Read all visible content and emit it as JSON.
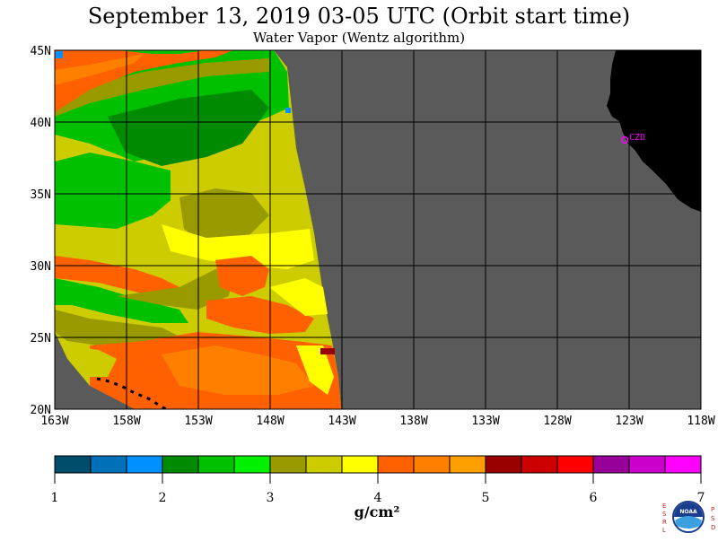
{
  "title": "September 13, 2019  03-05 UTC  (Orbit start time)",
  "subtitle": "Water Vapor (Wentz algorithm)",
  "map": {
    "lat_labels": [
      "45N",
      "40N",
      "35N",
      "30N",
      "25N",
      "20N"
    ],
    "lon_labels": [
      "163W",
      "158W",
      "153W",
      "148W",
      "143W",
      "138W",
      "133W",
      "128W",
      "123W",
      "118W"
    ],
    "lat_range": [
      20,
      45
    ],
    "lon_range": [
      -163,
      -118
    ],
    "land_color": "#000000",
    "no_data_color": "#5a5a5a",
    "grid_color": "#000000",
    "station_label": "CZD",
    "station_color": "#ff00ff"
  },
  "colorbar": {
    "tick_labels": [
      "1",
      "2",
      "3",
      "4",
      "5",
      "6",
      "7"
    ],
    "unit": "g/cm²",
    "min": 1,
    "max": 7,
    "colors": [
      "#004c6b",
      "#0070b8",
      "#0090ff",
      "#008a00",
      "#00c000",
      "#00f000",
      "#999900",
      "#cccc00",
      "#ffff00",
      "#ff6000",
      "#ff8000",
      "#ffa000",
      "#990000",
      "#cc0000",
      "#ff0000",
      "#990099",
      "#cc00cc",
      "#ff00ff"
    ]
  },
  "logo": {
    "left_letters": "ESRL",
    "right_letters": "PSD",
    "badge_text": "NOAA"
  }
}
